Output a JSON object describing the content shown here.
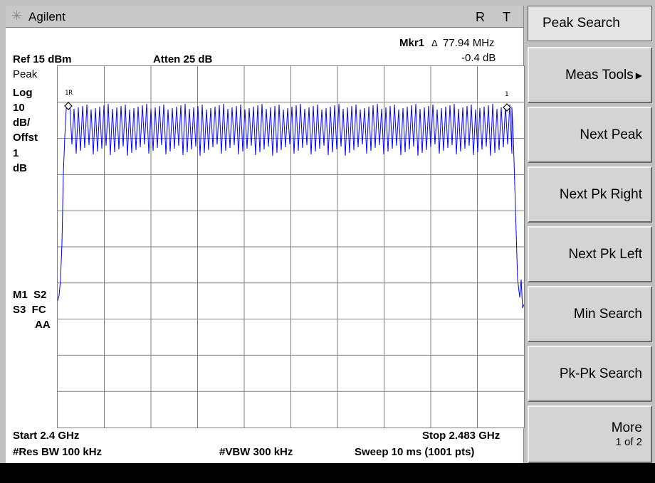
{
  "brand": {
    "name": "Agilent",
    "icon": "agilent-spark-icon"
  },
  "status_flags": {
    "r": "R",
    "t": "T"
  },
  "marker": {
    "label": "Mkr1",
    "delta_symbol": "Δ",
    "freq": "77.94 MHz",
    "amp": "-0.4 dB"
  },
  "ref_level": "Ref 15 dBm",
  "atten": "Atten 25 dB",
  "left_labels": {
    "detector": "Peak",
    "scale_type": "Log",
    "scale_value": "10",
    "scale_unit": "dB/",
    "offset_label": "Offst",
    "offset_value": "1",
    "offset_unit": "dB",
    "m1s2": "M1  S2",
    "s3fc": "S3  FC",
    "aa": "AA"
  },
  "markers_on_trace": {
    "ref": "1R",
    "delta": "1"
  },
  "bottom": {
    "start": "Start 2.4 GHz",
    "stop": "Stop 2.483 GHz",
    "rbw": "#Res BW 100 kHz",
    "vbw": "#VBW 300 kHz",
    "sweep": "Sweep 10 ms (1001 pts)"
  },
  "softkeys": {
    "title": "Peak Search",
    "items": [
      {
        "label": "Meas Tools",
        "submenu": true
      },
      {
        "label": "Next Peak"
      },
      {
        "label": "Next Pk Right"
      },
      {
        "label": "Next Pk Left"
      },
      {
        "label": "Min Search"
      },
      {
        "label": "Pk-Pk Search"
      },
      {
        "label": "More",
        "sub": "1 of 2"
      }
    ]
  },
  "colors": {
    "trace": "#0000ff",
    "grid": "#808080"
  }
}
